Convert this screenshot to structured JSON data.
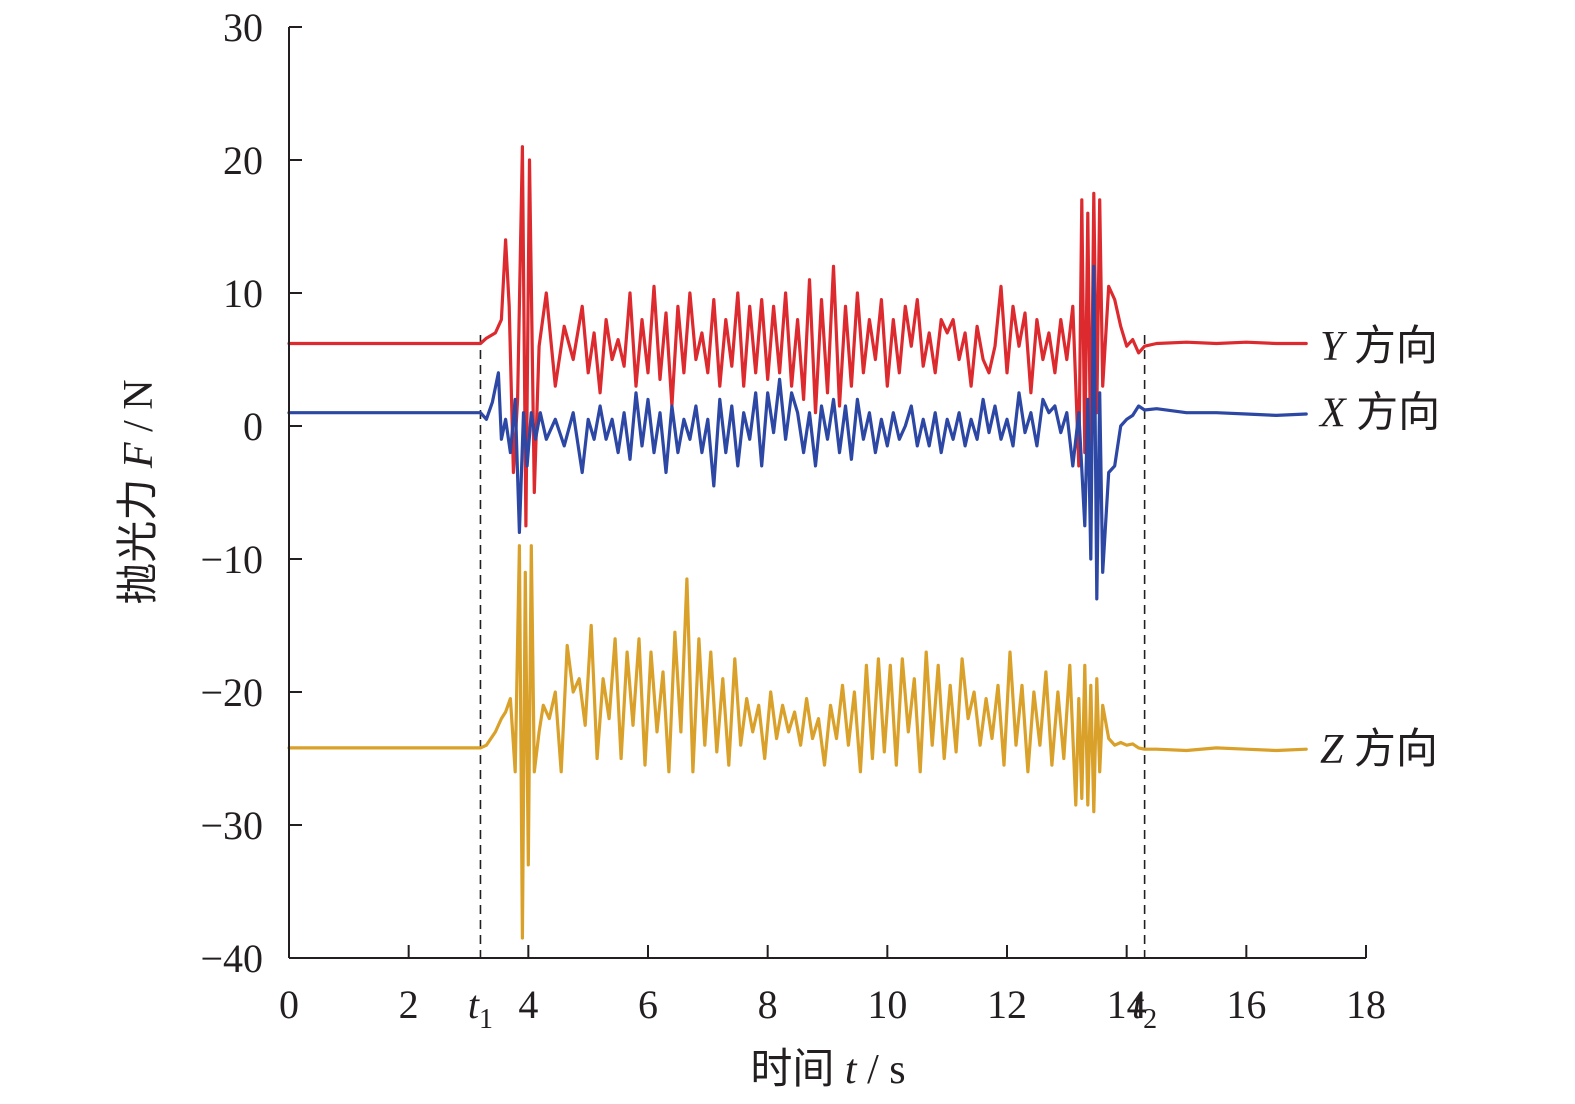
{
  "chart_data": {
    "type": "line",
    "xlabel": "时间 t / s",
    "xlabel_parts": {
      "prefix": "时间 ",
      "var": "t",
      "unit": " / s"
    },
    "ylabel": "抛光力 F / N",
    "ylabel_parts": {
      "prefix": "抛光力 ",
      "var": "F",
      "unit": " / N"
    },
    "xlim": [
      0,
      18
    ],
    "ylim": [
      -40,
      30
    ],
    "x_ticks": [
      0,
      2,
      4,
      6,
      8,
      10,
      12,
      14,
      16,
      18
    ],
    "x_tick_labels": [
      "0",
      "2",
      "4",
      "6",
      "8",
      "10",
      "12",
      "14",
      "16",
      "18"
    ],
    "y_ticks": [
      30,
      20,
      10,
      0,
      -10,
      -20,
      -30,
      -40
    ],
    "y_tick_labels": [
      "30",
      "20",
      "10",
      "0",
      "−10",
      "−20",
      "−30",
      "−40"
    ],
    "grid": false,
    "markers": [
      {
        "var": "t",
        "sub": "1",
        "x": 3.2,
        "style": "dashed"
      },
      {
        "var": "t",
        "sub": "2",
        "x": 14.3,
        "style": "dashed"
      }
    ],
    "series": [
      {
        "name": "Y 方向",
        "label_var": "Y",
        "label_text": " 方向",
        "color": "#dd2a2e",
        "label_y": 6.0,
        "x": [
          0,
          3.2,
          3.3,
          3.45,
          3.55,
          3.62,
          3.68,
          3.75,
          3.82,
          3.9,
          3.96,
          4.02,
          4.1,
          4.18,
          4.3,
          4.45,
          4.6,
          4.75,
          4.9,
          5.0,
          5.1,
          5.2,
          5.3,
          5.4,
          5.5,
          5.6,
          5.7,
          5.8,
          5.9,
          6.0,
          6.1,
          6.2,
          6.3,
          6.4,
          6.5,
          6.6,
          6.7,
          6.8,
          6.9,
          7.0,
          7.1,
          7.2,
          7.3,
          7.4,
          7.5,
          7.6,
          7.7,
          7.8,
          7.9,
          8.0,
          8.1,
          8.2,
          8.3,
          8.4,
          8.5,
          8.6,
          8.7,
          8.8,
          8.9,
          9.0,
          9.1,
          9.2,
          9.3,
          9.4,
          9.5,
          9.6,
          9.7,
          9.8,
          9.9,
          10.0,
          10.1,
          10.2,
          10.3,
          10.4,
          10.5,
          10.6,
          10.7,
          10.8,
          10.9,
          11.0,
          11.1,
          11.2,
          11.3,
          11.4,
          11.5,
          11.6,
          11.7,
          11.8,
          11.9,
          12.0,
          12.1,
          12.2,
          12.3,
          12.4,
          12.5,
          12.6,
          12.7,
          12.8,
          12.9,
          13.0,
          13.1,
          13.2,
          13.25,
          13.3,
          13.35,
          13.4,
          13.45,
          13.5,
          13.55,
          13.6,
          13.7,
          13.8,
          13.9,
          14.0,
          14.1,
          14.2,
          14.3,
          14.5,
          15.0,
          15.5,
          16.0,
          16.5,
          17.0
        ],
        "values": [
          6.2,
          6.2,
          6.6,
          7.0,
          8.0,
          14.0,
          9.0,
          -3.5,
          2.0,
          21.0,
          -7.5,
          20.0,
          -5.0,
          6.0,
          10.0,
          3.0,
          7.5,
          5.0,
          9.0,
          4.0,
          7.0,
          2.5,
          8.0,
          5.0,
          6.5,
          4.5,
          10.0,
          3.0,
          8.0,
          4.0,
          10.5,
          3.5,
          8.5,
          1.5,
          9.0,
          4.0,
          10.0,
          5.0,
          7.0,
          4.0,
          9.5,
          3.0,
          8.0,
          4.5,
          10.0,
          3.0,
          9.0,
          4.0,
          9.5,
          3.5,
          9.0,
          4.0,
          10.0,
          3.0,
          8.0,
          2.0,
          11.0,
          1.0,
          9.5,
          2.5,
          12.0,
          1.5,
          9.0,
          3.0,
          10.0,
          4.0,
          8.0,
          5.0,
          9.5,
          3.0,
          8.0,
          4.0,
          9.0,
          6.0,
          9.5,
          4.5,
          7.0,
          4.0,
          8.0,
          7.0,
          8.0,
          5.0,
          7.0,
          3.0,
          7.5,
          5.0,
          4.0,
          6.0,
          10.5,
          4.0,
          9.0,
          6.0,
          8.5,
          2.5,
          8.0,
          5.0,
          7.0,
          4.0,
          8.0,
          5.0,
          9.0,
          -3.0,
          17.0,
          -2.0,
          16.0,
          -3.5,
          17.5,
          1.0,
          17.0,
          3.0,
          10.5,
          9.5,
          7.5,
          6.0,
          6.5,
          5.5,
          6.0,
          6.2,
          6.3,
          6.2,
          6.3,
          6.2,
          6.2
        ]
      },
      {
        "name": "X 方向",
        "label_var": "X",
        "label_text": " 方向",
        "color": "#2d47a4",
        "label_y": 1.0,
        "x": [
          0,
          3.2,
          3.3,
          3.4,
          3.5,
          3.55,
          3.62,
          3.7,
          3.78,
          3.85,
          3.92,
          3.98,
          4.05,
          4.12,
          4.2,
          4.3,
          4.45,
          4.6,
          4.75,
          4.9,
          5.0,
          5.1,
          5.2,
          5.3,
          5.4,
          5.5,
          5.6,
          5.7,
          5.8,
          5.9,
          6.0,
          6.1,
          6.2,
          6.3,
          6.4,
          6.5,
          6.6,
          6.7,
          6.8,
          6.9,
          7.0,
          7.1,
          7.2,
          7.3,
          7.4,
          7.5,
          7.6,
          7.7,
          7.8,
          7.9,
          8.0,
          8.1,
          8.2,
          8.3,
          8.4,
          8.5,
          8.6,
          8.7,
          8.8,
          8.9,
          9.0,
          9.1,
          9.2,
          9.3,
          9.4,
          9.5,
          9.6,
          9.7,
          9.8,
          9.9,
          10.0,
          10.1,
          10.2,
          10.3,
          10.4,
          10.5,
          10.6,
          10.7,
          10.8,
          10.9,
          11.0,
          11.1,
          11.2,
          11.3,
          11.4,
          11.5,
          11.6,
          11.7,
          11.8,
          11.9,
          12.0,
          12.1,
          12.2,
          12.3,
          12.4,
          12.5,
          12.6,
          12.7,
          12.8,
          12.9,
          13.0,
          13.1,
          13.2,
          13.3,
          13.35,
          13.4,
          13.45,
          13.5,
          13.55,
          13.6,
          13.7,
          13.8,
          13.9,
          14.0,
          14.1,
          14.2,
          14.3,
          14.5,
          15.0,
          15.5,
          16.0,
          16.5,
          17.0
        ],
        "values": [
          1.0,
          1.0,
          0.5,
          1.8,
          4.0,
          -1.0,
          0.5,
          -2.0,
          2.0,
          -8.0,
          1.0,
          -3.0,
          1.0,
          -1.0,
          1.0,
          -1.0,
          0.5,
          -1.5,
          1.0,
          -3.5,
          0.5,
          -1.0,
          1.5,
          -1.0,
          0.5,
          -2.0,
          1.0,
          -2.5,
          2.5,
          -1.5,
          2.0,
          -2.0,
          1.0,
          -3.5,
          1.5,
          -2.0,
          0.5,
          -1.0,
          1.5,
          -2.0,
          0.5,
          -4.5,
          2.0,
          -2.0,
          1.5,
          -3.0,
          1.0,
          -1.0,
          2.5,
          -3.0,
          2.5,
          -0.5,
          3.5,
          -1.0,
          2.5,
          1.0,
          -2.0,
          1.0,
          -3.0,
          1.5,
          -1.0,
          2.0,
          -2.0,
          1.5,
          -2.5,
          2.0,
          -1.0,
          1.0,
          -2.0,
          0.5,
          -1.5,
          1.0,
          -1.0,
          0.0,
          1.5,
          -1.5,
          0.5,
          -1.5,
          1.0,
          -2.0,
          0.5,
          -1.0,
          1.0,
          -1.5,
          0.5,
          -1.0,
          2.0,
          -0.5,
          1.5,
          -1.0,
          0.5,
          -1.5,
          2.5,
          -0.5,
          1.0,
          -1.5,
          2.0,
          1.0,
          1.5,
          -0.5,
          1.0,
          -3.0,
          1.0,
          -7.5,
          2.0,
          -10.0,
          12.0,
          -13.0,
          2.5,
          -11.0,
          -3.5,
          -3.0,
          0.0,
          0.5,
          0.8,
          1.5,
          1.2,
          1.3,
          1.0,
          1.0,
          0.9,
          0.8,
          0.9
        ]
      },
      {
        "name": "Z 方向",
        "label_var": "Z",
        "label_text": " 方向",
        "color": "#d9a02a",
        "label_y": -24.3,
        "x": [
          0,
          3.2,
          3.3,
          3.45,
          3.55,
          3.62,
          3.7,
          3.78,
          3.85,
          3.9,
          3.95,
          4.0,
          4.05,
          4.1,
          4.18,
          4.25,
          4.35,
          4.45,
          4.55,
          4.65,
          4.75,
          4.85,
          4.95,
          5.05,
          5.15,
          5.25,
          5.35,
          5.45,
          5.55,
          5.65,
          5.75,
          5.85,
          5.95,
          6.05,
          6.15,
          6.25,
          6.35,
          6.45,
          6.55,
          6.65,
          6.75,
          6.85,
          6.95,
          7.05,
          7.15,
          7.25,
          7.35,
          7.45,
          7.55,
          7.65,
          7.75,
          7.85,
          7.95,
          8.05,
          8.15,
          8.25,
          8.35,
          8.45,
          8.55,
          8.65,
          8.75,
          8.85,
          8.95,
          9.05,
          9.15,
          9.25,
          9.35,
          9.45,
          9.55,
          9.65,
          9.75,
          9.85,
          9.95,
          10.05,
          10.15,
          10.25,
          10.35,
          10.45,
          10.55,
          10.65,
          10.75,
          10.85,
          10.95,
          11.05,
          11.15,
          11.25,
          11.35,
          11.45,
          11.55,
          11.65,
          11.75,
          11.85,
          11.95,
          12.05,
          12.15,
          12.25,
          12.35,
          12.45,
          12.55,
          12.65,
          12.75,
          12.85,
          12.95,
          13.05,
          13.15,
          13.2,
          13.25,
          13.3,
          13.35,
          13.4,
          13.45,
          13.5,
          13.55,
          13.6,
          13.7,
          13.8,
          13.9,
          14.0,
          14.1,
          14.2,
          14.3,
          14.5,
          15.0,
          15.5,
          16.0,
          16.5,
          17.0
        ],
        "values": [
          -24.2,
          -24.2,
          -24.0,
          -23.0,
          -22.0,
          -21.5,
          -20.5,
          -26.0,
          -9.0,
          -38.5,
          -11.0,
          -33.0,
          -9.0,
          -26.0,
          -23.0,
          -21.0,
          -22.0,
          -20.0,
          -26.0,
          -16.5,
          -20.0,
          -19.0,
          -22.5,
          -15.0,
          -25.0,
          -19.0,
          -22.0,
          -16.0,
          -25.0,
          -17.0,
          -22.5,
          -16.0,
          -25.5,
          -17.0,
          -23.0,
          -18.5,
          -26.0,
          -15.5,
          -23.0,
          -11.5,
          -26.0,
          -16.0,
          -24.0,
          -17.0,
          -24.5,
          -19.0,
          -25.5,
          -17.5,
          -24.0,
          -20.5,
          -23.0,
          -21.0,
          -25.0,
          -20.0,
          -23.5,
          -21.0,
          -23.0,
          -21.5,
          -24.0,
          -20.5,
          -23.5,
          -22.0,
          -25.5,
          -21.0,
          -23.5,
          -19.5,
          -24.0,
          -20.0,
          -26.0,
          -18.0,
          -25.0,
          -17.5,
          -24.5,
          -18.0,
          -25.5,
          -17.5,
          -23.0,
          -19.0,
          -26.0,
          -17.0,
          -24.0,
          -18.0,
          -25.0,
          -19.5,
          -24.5,
          -17.5,
          -22.0,
          -20.0,
          -24.0,
          -20.5,
          -23.5,
          -19.5,
          -25.5,
          -17.0,
          -24.0,
          -19.5,
          -26.0,
          -20.0,
          -24.0,
          -18.5,
          -25.5,
          -20.0,
          -25.0,
          -18.0,
          -28.5,
          -20.5,
          -28.0,
          -18.0,
          -28.5,
          -19.5,
          -29.0,
          -19.0,
          -26.0,
          -21.0,
          -23.5,
          -24.0,
          -23.8,
          -24.0,
          -23.9,
          -24.2,
          -24.3,
          -24.3,
          -24.4,
          -24.2,
          -24.3,
          -24.4,
          -24.3
        ]
      }
    ]
  }
}
